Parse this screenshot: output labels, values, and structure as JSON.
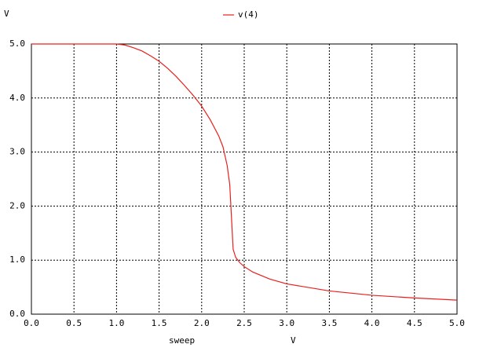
{
  "chart_data": {
    "type": "line",
    "y_label": "V",
    "x_label": "sweep",
    "x_unit": "V",
    "x": [
      0,
      0.5,
      1.0,
      1.1,
      1.2,
      1.3,
      1.4,
      1.5,
      1.6,
      1.7,
      1.8,
      1.9,
      2.0,
      2.1,
      2.2,
      2.25,
      2.3,
      2.33,
      2.35,
      2.37,
      2.4,
      2.45,
      2.5,
      2.6,
      2.8,
      3.0,
      3.5,
      4.0,
      4.5,
      5.0
    ],
    "series": [
      {
        "name": "v(4)",
        "color": "#e8201c",
        "values": [
          5.0,
          5.0,
          5.0,
          4.98,
          4.93,
          4.87,
          4.78,
          4.68,
          4.55,
          4.4,
          4.23,
          4.05,
          3.85,
          3.6,
          3.3,
          3.1,
          2.75,
          2.4,
          1.8,
          1.2,
          1.05,
          0.95,
          0.88,
          0.78,
          0.65,
          0.56,
          0.43,
          0.35,
          0.3,
          0.26
        ]
      }
    ],
    "xlim": [
      0,
      5
    ],
    "ylim": [
      0,
      5
    ],
    "xticks": [
      {
        "value": 0,
        "label": "0.0"
      },
      0.5,
      {
        "value": 1,
        "label": "1.0"
      },
      1.5,
      {
        "value": 2,
        "label": "2.0"
      },
      2.5,
      {
        "value": 3,
        "label": "3.0"
      },
      3.5,
      {
        "value": 4,
        "label": "4.0"
      },
      4.5,
      {
        "value": 5,
        "label": "5.0"
      }
    ],
    "yticks": [
      {
        "value": 0,
        "label": "0.0"
      },
      {
        "value": 1,
        "label": "1.0"
      },
      {
        "value": 2,
        "label": "2.0"
      },
      {
        "value": 3,
        "label": "3.0"
      },
      {
        "value": 4,
        "label": "4.0"
      },
      {
        "value": 5,
        "label": "5.0"
      }
    ],
    "grid": true
  }
}
